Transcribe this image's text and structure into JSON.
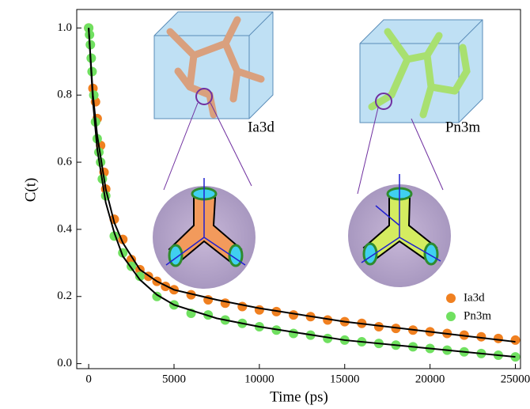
{
  "chart_data": {
    "type": "scatter",
    "xlabel": "Time (ps)",
    "ylabel": "C(t)",
    "xlim": [
      -700,
      25300
    ],
    "ylim": [
      -0.015,
      1.055
    ],
    "xticks": [
      0,
      5000,
      10000,
      15000,
      20000,
      25000
    ],
    "yticks": [
      {
        "value": 0,
        "label": "0.0"
      },
      0.2,
      0.4,
      0.6,
      0.8,
      {
        "value": 1,
        "label": "1.0"
      }
    ],
    "inset_labels": [
      "Ia3d",
      "Pn3m"
    ],
    "series": [
      {
        "name": "Ia3d",
        "color": "#f08020",
        "x": [
          0,
          250,
          400,
          500,
          700,
          900,
          1000,
          1500,
          2000,
          2500,
          3000,
          3500,
          4000,
          4500,
          5000,
          6000,
          7000,
          8000,
          9000,
          10000,
          11000,
          12000,
          13000,
          14000,
          15000,
          16000,
          17000,
          18000,
          19000,
          20000,
          21000,
          22000,
          23000,
          24000,
          25000
        ],
        "values": [
          1.0,
          0.82,
          0.78,
          0.73,
          0.65,
          0.57,
          0.52,
          0.43,
          0.37,
          0.31,
          0.28,
          0.26,
          0.245,
          0.23,
          0.22,
          0.205,
          0.19,
          0.18,
          0.17,
          0.16,
          0.155,
          0.145,
          0.14,
          0.13,
          0.125,
          0.12,
          0.11,
          0.105,
          0.1,
          0.095,
          0.09,
          0.085,
          0.08,
          0.075,
          0.07
        ]
      },
      {
        "name": "Pn3m",
        "color": "#70e060",
        "x": [
          0,
          50,
          100,
          150,
          200,
          300,
          400,
          500,
          600,
          700,
          800,
          1000,
          1500,
          2000,
          2500,
          3000,
          4000,
          5000,
          6000,
          7000,
          8000,
          9000,
          10000,
          11000,
          12000,
          13000,
          14000,
          15000,
          16000,
          17000,
          18000,
          19000,
          20000,
          21000,
          22000,
          23000,
          24000,
          25000
        ],
        "values": [
          1.0,
          0.98,
          0.95,
          0.91,
          0.87,
          0.8,
          0.72,
          0.67,
          0.63,
          0.6,
          0.55,
          0.5,
          0.38,
          0.33,
          0.29,
          0.26,
          0.2,
          0.175,
          0.15,
          0.145,
          0.13,
          0.12,
          0.11,
          0.1,
          0.09,
          0.085,
          0.075,
          0.07,
          0.065,
          0.06,
          0.055,
          0.05,
          0.045,
          0.04,
          0.035,
          0.03,
          0.025,
          0.02
        ]
      }
    ],
    "fits": [
      {
        "color": "#000000",
        "x": [
          0,
          250,
          500,
          1000,
          1500,
          2000,
          3000,
          4000,
          5000,
          7500,
          10000,
          15000,
          20000,
          25000
        ],
        "values": [
          1.0,
          0.8,
          0.68,
          0.52,
          0.42,
          0.36,
          0.28,
          0.245,
          0.22,
          0.19,
          0.165,
          0.125,
          0.095,
          0.065
        ]
      },
      {
        "color": "#000000",
        "x": [
          0,
          250,
          500,
          1000,
          1500,
          2000,
          3000,
          4000,
          5000,
          7500,
          10000,
          15000,
          20000,
          25000
        ],
        "values": [
          1.0,
          0.78,
          0.64,
          0.48,
          0.39,
          0.32,
          0.25,
          0.205,
          0.175,
          0.135,
          0.11,
          0.07,
          0.045,
          0.02
        ]
      }
    ]
  }
}
